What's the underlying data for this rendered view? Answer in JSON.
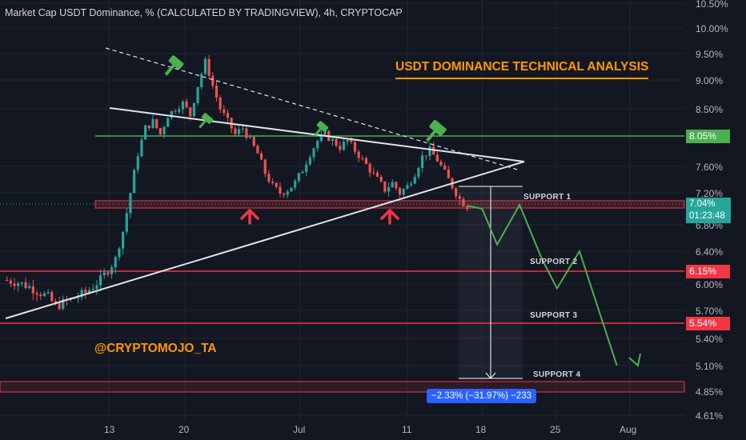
{
  "header": {
    "title": "Market Cap USDT Dominance, % (CALCULATED BY TRADINGVIEW), 4h, CRYPTOCAP"
  },
  "annotations": {
    "title": "USDT DOMINANCE TECHNICAL ANALYSIS",
    "watermark": "@CRYPTOMOJO_TA",
    "support_labels": [
      "SUPPORT 1",
      "SUPPORT 2",
      "SUPPORT 3",
      "SUPPORT 4"
    ],
    "measure_label": "−2.33% (−31.97%) −233"
  },
  "price_badges": {
    "resistance": "8.05%",
    "last_price": "7.04%",
    "countdown": "01:23:48",
    "support2": "6.15%",
    "support3": "5.54%"
  },
  "colors": {
    "background": "#131722",
    "up": "#26a69a",
    "down": "#ef5350",
    "resistance": "#4caf50",
    "support": "#f23645",
    "projection": "#4caf50",
    "accent": "#ff9800",
    "measure": "#2962ff"
  },
  "chart_data": {
    "type": "candlestick",
    "title": "Market Cap USDT Dominance, % (CALCULATED BY TRADINGVIEW), 4h, CRYPTOCAP",
    "y_axis": {
      "unit": "%",
      "ticks": [
        "10.50%",
        "10.00%",
        "9.50%",
        "9.00%",
        "8.50%",
        "7.60%",
        "7.20%",
        "6.80%",
        "6.40%",
        "6.00%",
        "5.70%",
        "5.40%",
        "5.10%",
        "4.85%",
        "4.61%"
      ],
      "ylim": [
        4.61,
        10.5
      ]
    },
    "x_axis": {
      "ticks": [
        "13",
        "20",
        "Jul",
        "11",
        "18",
        "25",
        "Aug"
      ]
    },
    "close_path": [
      [
        0,
        6.05
      ],
      [
        2,
        6.02
      ],
      [
        4,
        5.95
      ],
      [
        6,
        5.85
      ],
      [
        7,
        5.75
      ],
      [
        9,
        5.82
      ],
      [
        11,
        5.9
      ],
      [
        13,
        6.05
      ],
      [
        15,
        6.3
      ],
      [
        16,
        6.7
      ],
      [
        17,
        7.2
      ],
      [
        18,
        7.8
      ],
      [
        19,
        8.2
      ],
      [
        20,
        8.3
      ],
      [
        21,
        8.1
      ],
      [
        22,
        8.4
      ],
      [
        23,
        8.5
      ],
      [
        24,
        8.6
      ],
      [
        25,
        8.4
      ],
      [
        26,
        8.9
      ],
      [
        27,
        9.35
      ],
      [
        28,
        8.9
      ],
      [
        29,
        8.5
      ],
      [
        30,
        8.3
      ],
      [
        31,
        8.1
      ],
      [
        32,
        8.2
      ],
      [
        33,
        8.0
      ],
      [
        34,
        7.8
      ],
      [
        35,
        7.5
      ],
      [
        36,
        7.3
      ],
      [
        37,
        7.2
      ],
      [
        38,
        7.25
      ],
      [
        39,
        7.35
      ],
      [
        40,
        7.55
      ],
      [
        41,
        7.8
      ],
      [
        42,
        8.0
      ],
      [
        43,
        8.1
      ],
      [
        44,
        8.0
      ],
      [
        45,
        7.9
      ],
      [
        46,
        8.0
      ],
      [
        47,
        7.85
      ],
      [
        48,
        7.7
      ],
      [
        49,
        7.55
      ],
      [
        50,
        7.4
      ],
      [
        51,
        7.25
      ],
      [
        52,
        7.35
      ],
      [
        53,
        7.2
      ],
      [
        54,
        7.3
      ],
      [
        55,
        7.5
      ],
      [
        56,
        7.75
      ],
      [
        57,
        7.85
      ],
      [
        58,
        7.7
      ],
      [
        59,
        7.5
      ],
      [
        60,
        7.3
      ],
      [
        61,
        7.12
      ],
      [
        62,
        7.04
      ]
    ],
    "levels": [
      {
        "name": "Resistance",
        "value": 8.05
      },
      {
        "name": "SUPPORT 1",
        "value": 7.04
      },
      {
        "name": "SUPPORT 2",
        "value": 6.15
      },
      {
        "name": "SUPPORT 3",
        "value": 5.54
      },
      {
        "name": "SUPPORT 4",
        "value": 4.85
      }
    ],
    "projection": [
      [
        62,
        7.04
      ],
      [
        64,
        7.0
      ],
      [
        66,
        6.5
      ],
      [
        69,
        7.05
      ],
      [
        72,
        6.3
      ],
      [
        74,
        5.95
      ],
      [
        77,
        6.4
      ],
      [
        82,
        5.1
      ]
    ],
    "measure": {
      "from": 7.2,
      "to": 4.9,
      "label": "−2.33% (−31.97%) −233"
    }
  }
}
